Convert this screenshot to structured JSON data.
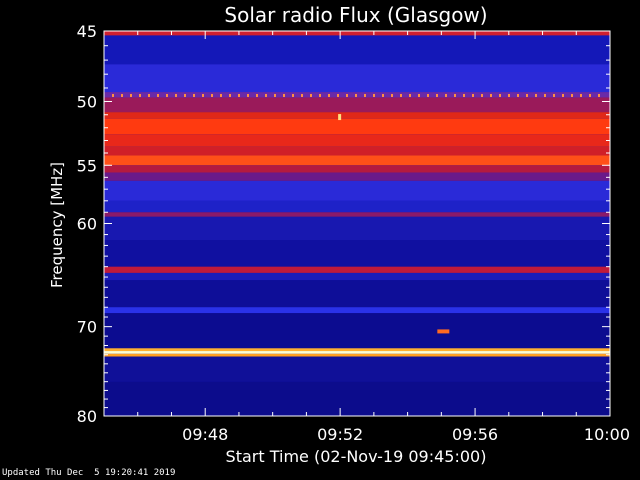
{
  "footer": {
    "updated": "Updated Thu Dec  5 19:20:41 2019"
  },
  "chart_data": {
    "type": "heatmap",
    "title": "Solar radio Flux (Glasgow)",
    "ylabel": "Frequency [MHz]",
    "xlabel": "Start Time (02-Nov-19 09:45:00)",
    "x_range_minutes": [
      0,
      15
    ],
    "y_range_mhz": [
      45,
      80
    ],
    "y_scale": "log",
    "x_ticks": [
      {
        "minute": 3,
        "label": "09:48"
      },
      {
        "minute": 7,
        "label": "09:52"
      },
      {
        "minute": 11,
        "label": "09:56"
      },
      {
        "minute": 15,
        "label": "10:00"
      }
    ],
    "y_ticks": [
      {
        "mhz": 45,
        "label": "45"
      },
      {
        "mhz": 50,
        "label": "50"
      },
      {
        "mhz": 55,
        "label": "55"
      },
      {
        "mhz": 60,
        "label": "60"
      },
      {
        "mhz": 70,
        "label": "70"
      },
      {
        "mhz": 80,
        "label": "80"
      }
    ],
    "bands": [
      {
        "from_mhz": 45.0,
        "to_mhz": 45.3,
        "color": "#d02030"
      },
      {
        "from_mhz": 45.3,
        "to_mhz": 47.3,
        "color": "#1418b8"
      },
      {
        "from_mhz": 47.3,
        "to_mhz": 49.3,
        "color": "#2a2ad8"
      },
      {
        "from_mhz": 49.3,
        "to_mhz": 49.7,
        "color": "#6a2aa8"
      },
      {
        "from_mhz": 49.7,
        "to_mhz": 50.8,
        "color": "#9a1a5a"
      },
      {
        "from_mhz": 50.8,
        "to_mhz": 51.3,
        "color": "#e02818"
      },
      {
        "from_mhz": 51.3,
        "to_mhz": 52.5,
        "color": "#ff3a10"
      },
      {
        "from_mhz": 52.5,
        "to_mhz": 53.5,
        "color": "#e8281a"
      },
      {
        "from_mhz": 53.5,
        "to_mhz": 54.2,
        "color": "#d01f28"
      },
      {
        "from_mhz": 54.2,
        "to_mhz": 55.0,
        "color": "#ff5018"
      },
      {
        "from_mhz": 55.0,
        "to_mhz": 55.6,
        "color": "#b41a40"
      },
      {
        "from_mhz": 55.6,
        "to_mhz": 56.3,
        "color": "#6a1a8a"
      },
      {
        "from_mhz": 56.3,
        "to_mhz": 58.0,
        "color": "#2a2ad8"
      },
      {
        "from_mhz": 58.0,
        "to_mhz": 59.0,
        "color": "#1e22c8"
      },
      {
        "from_mhz": 59.0,
        "to_mhz": 59.4,
        "color": "#8a1a6a"
      },
      {
        "from_mhz": 59.4,
        "to_mhz": 61.5,
        "color": "#1818b0"
      },
      {
        "from_mhz": 61.5,
        "to_mhz": 64.0,
        "color": "#1010a0"
      },
      {
        "from_mhz": 64.0,
        "to_mhz": 64.6,
        "color": "#c01a3a"
      },
      {
        "from_mhz": 64.6,
        "to_mhz": 65.3,
        "color": "#1c1cb8"
      },
      {
        "from_mhz": 65.3,
        "to_mhz": 68.0,
        "color": "#0e0e98"
      },
      {
        "from_mhz": 68.0,
        "to_mhz": 68.6,
        "color": "#2a32e8"
      },
      {
        "from_mhz": 68.6,
        "to_mhz": 72.3,
        "color": "#0c0c90"
      },
      {
        "from_mhz": 72.3,
        "to_mhz": 72.6,
        "color": "#ffb030"
      },
      {
        "from_mhz": 72.6,
        "to_mhz": 72.9,
        "color": "#ffffd0"
      },
      {
        "from_mhz": 72.9,
        "to_mhz": 73.2,
        "color": "#ffa020"
      },
      {
        "from_mhz": 73.2,
        "to_mhz": 76.0,
        "color": "#101098"
      },
      {
        "from_mhz": 76.0,
        "to_mhz": 80.0,
        "color": "#0c0c8c"
      }
    ],
    "dashed_line": {
      "mhz": 49.55,
      "color": "#ff9040"
    },
    "bursts": [
      {
        "minute": 7.0,
        "mhz": 51.1,
        "color": "#ffe080"
      },
      {
        "minute": 10.0,
        "mhz": 70.5,
        "color": "#ff6a20"
      }
    ]
  }
}
